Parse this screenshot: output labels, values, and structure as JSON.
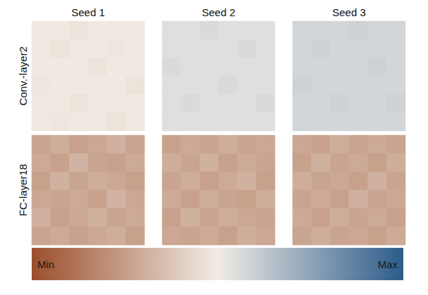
{
  "chart_data": {
    "type": "heatmap",
    "columns": [
      "Seed 1",
      "Seed 2",
      "Seed 3"
    ],
    "rows": [
      "Conv.-layer2",
      "FC-layer18"
    ],
    "tick_labels": false,
    "panels": [
      [
        [
          [
            0.49,
            0.49,
            0.47,
            0.49,
            0.49,
            0.49
          ],
          [
            0.49,
            0.47,
            0.49,
            0.49,
            0.48,
            0.49
          ],
          [
            0.49,
            0.49,
            0.49,
            0.47,
            0.49,
            0.49
          ],
          [
            0.48,
            0.49,
            0.49,
            0.49,
            0.49,
            0.47
          ],
          [
            0.49,
            0.49,
            0.47,
            0.49,
            0.49,
            0.49
          ],
          [
            0.49,
            0.48,
            0.49,
            0.49,
            0.47,
            0.49
          ]
        ],
        [
          [
            0.545,
            0.545,
            0.56,
            0.545,
            0.545,
            0.545
          ],
          [
            0.545,
            0.545,
            0.545,
            0.545,
            0.56,
            0.545
          ],
          [
            0.56,
            0.545,
            0.545,
            0.545,
            0.545,
            0.545
          ],
          [
            0.545,
            0.545,
            0.545,
            0.56,
            0.545,
            0.545
          ],
          [
            0.545,
            0.56,
            0.545,
            0.545,
            0.545,
            0.56
          ],
          [
            0.545,
            0.545,
            0.545,
            0.545,
            0.545,
            0.545
          ]
        ],
        [
          [
            0.575,
            0.575,
            0.575,
            0.59,
            0.575,
            0.575
          ],
          [
            0.575,
            0.59,
            0.575,
            0.575,
            0.575,
            0.575
          ],
          [
            0.575,
            0.575,
            0.575,
            0.575,
            0.59,
            0.575
          ],
          [
            0.59,
            0.575,
            0.575,
            0.575,
            0.575,
            0.575
          ],
          [
            0.575,
            0.575,
            0.59,
            0.575,
            0.575,
            0.59
          ],
          [
            0.575,
            0.575,
            0.575,
            0.575,
            0.575,
            0.575
          ]
        ]
      ],
      [
        [
          [
            0.27,
            0.3,
            0.26,
            0.28,
            0.31,
            0.27
          ],
          [
            0.29,
            0.26,
            0.32,
            0.27,
            0.26,
            0.29
          ],
          [
            0.26,
            0.31,
            0.27,
            0.3,
            0.28,
            0.26
          ],
          [
            0.28,
            0.27,
            0.29,
            0.26,
            0.32,
            0.28
          ],
          [
            0.31,
            0.26,
            0.28,
            0.31,
            0.27,
            0.29
          ],
          [
            0.27,
            0.29,
            0.26,
            0.28,
            0.3,
            0.26
          ]
        ],
        [
          [
            0.26,
            0.29,
            0.27,
            0.3,
            0.27,
            0.28
          ],
          [
            0.3,
            0.27,
            0.31,
            0.26,
            0.29,
            0.27
          ],
          [
            0.27,
            0.3,
            0.26,
            0.29,
            0.31,
            0.26
          ],
          [
            0.29,
            0.26,
            0.3,
            0.27,
            0.26,
            0.3
          ],
          [
            0.26,
            0.31,
            0.27,
            0.3,
            0.28,
            0.27
          ],
          [
            0.28,
            0.27,
            0.29,
            0.26,
            0.3,
            0.28
          ]
        ],
        [
          [
            0.28,
            0.26,
            0.3,
            0.27,
            0.29,
            0.27
          ],
          [
            0.26,
            0.31,
            0.27,
            0.29,
            0.26,
            0.3
          ],
          [
            0.3,
            0.27,
            0.28,
            0.26,
            0.31,
            0.27
          ],
          [
            0.27,
            0.29,
            0.26,
            0.31,
            0.27,
            0.28
          ],
          [
            0.29,
            0.26,
            0.3,
            0.27,
            0.29,
            0.26
          ],
          [
            0.27,
            0.3,
            0.27,
            0.28,
            0.26,
            0.29
          ]
        ]
      ]
    ],
    "colorbar": {
      "range": [
        0,
        1
      ],
      "ticks": [
        {
          "value": 0,
          "label": "Min"
        },
        {
          "value": 1,
          "label": "Max"
        }
      ],
      "colors": [
        "#9b4f2b",
        "#f1ece6",
        "#2c5c8a"
      ]
    }
  }
}
